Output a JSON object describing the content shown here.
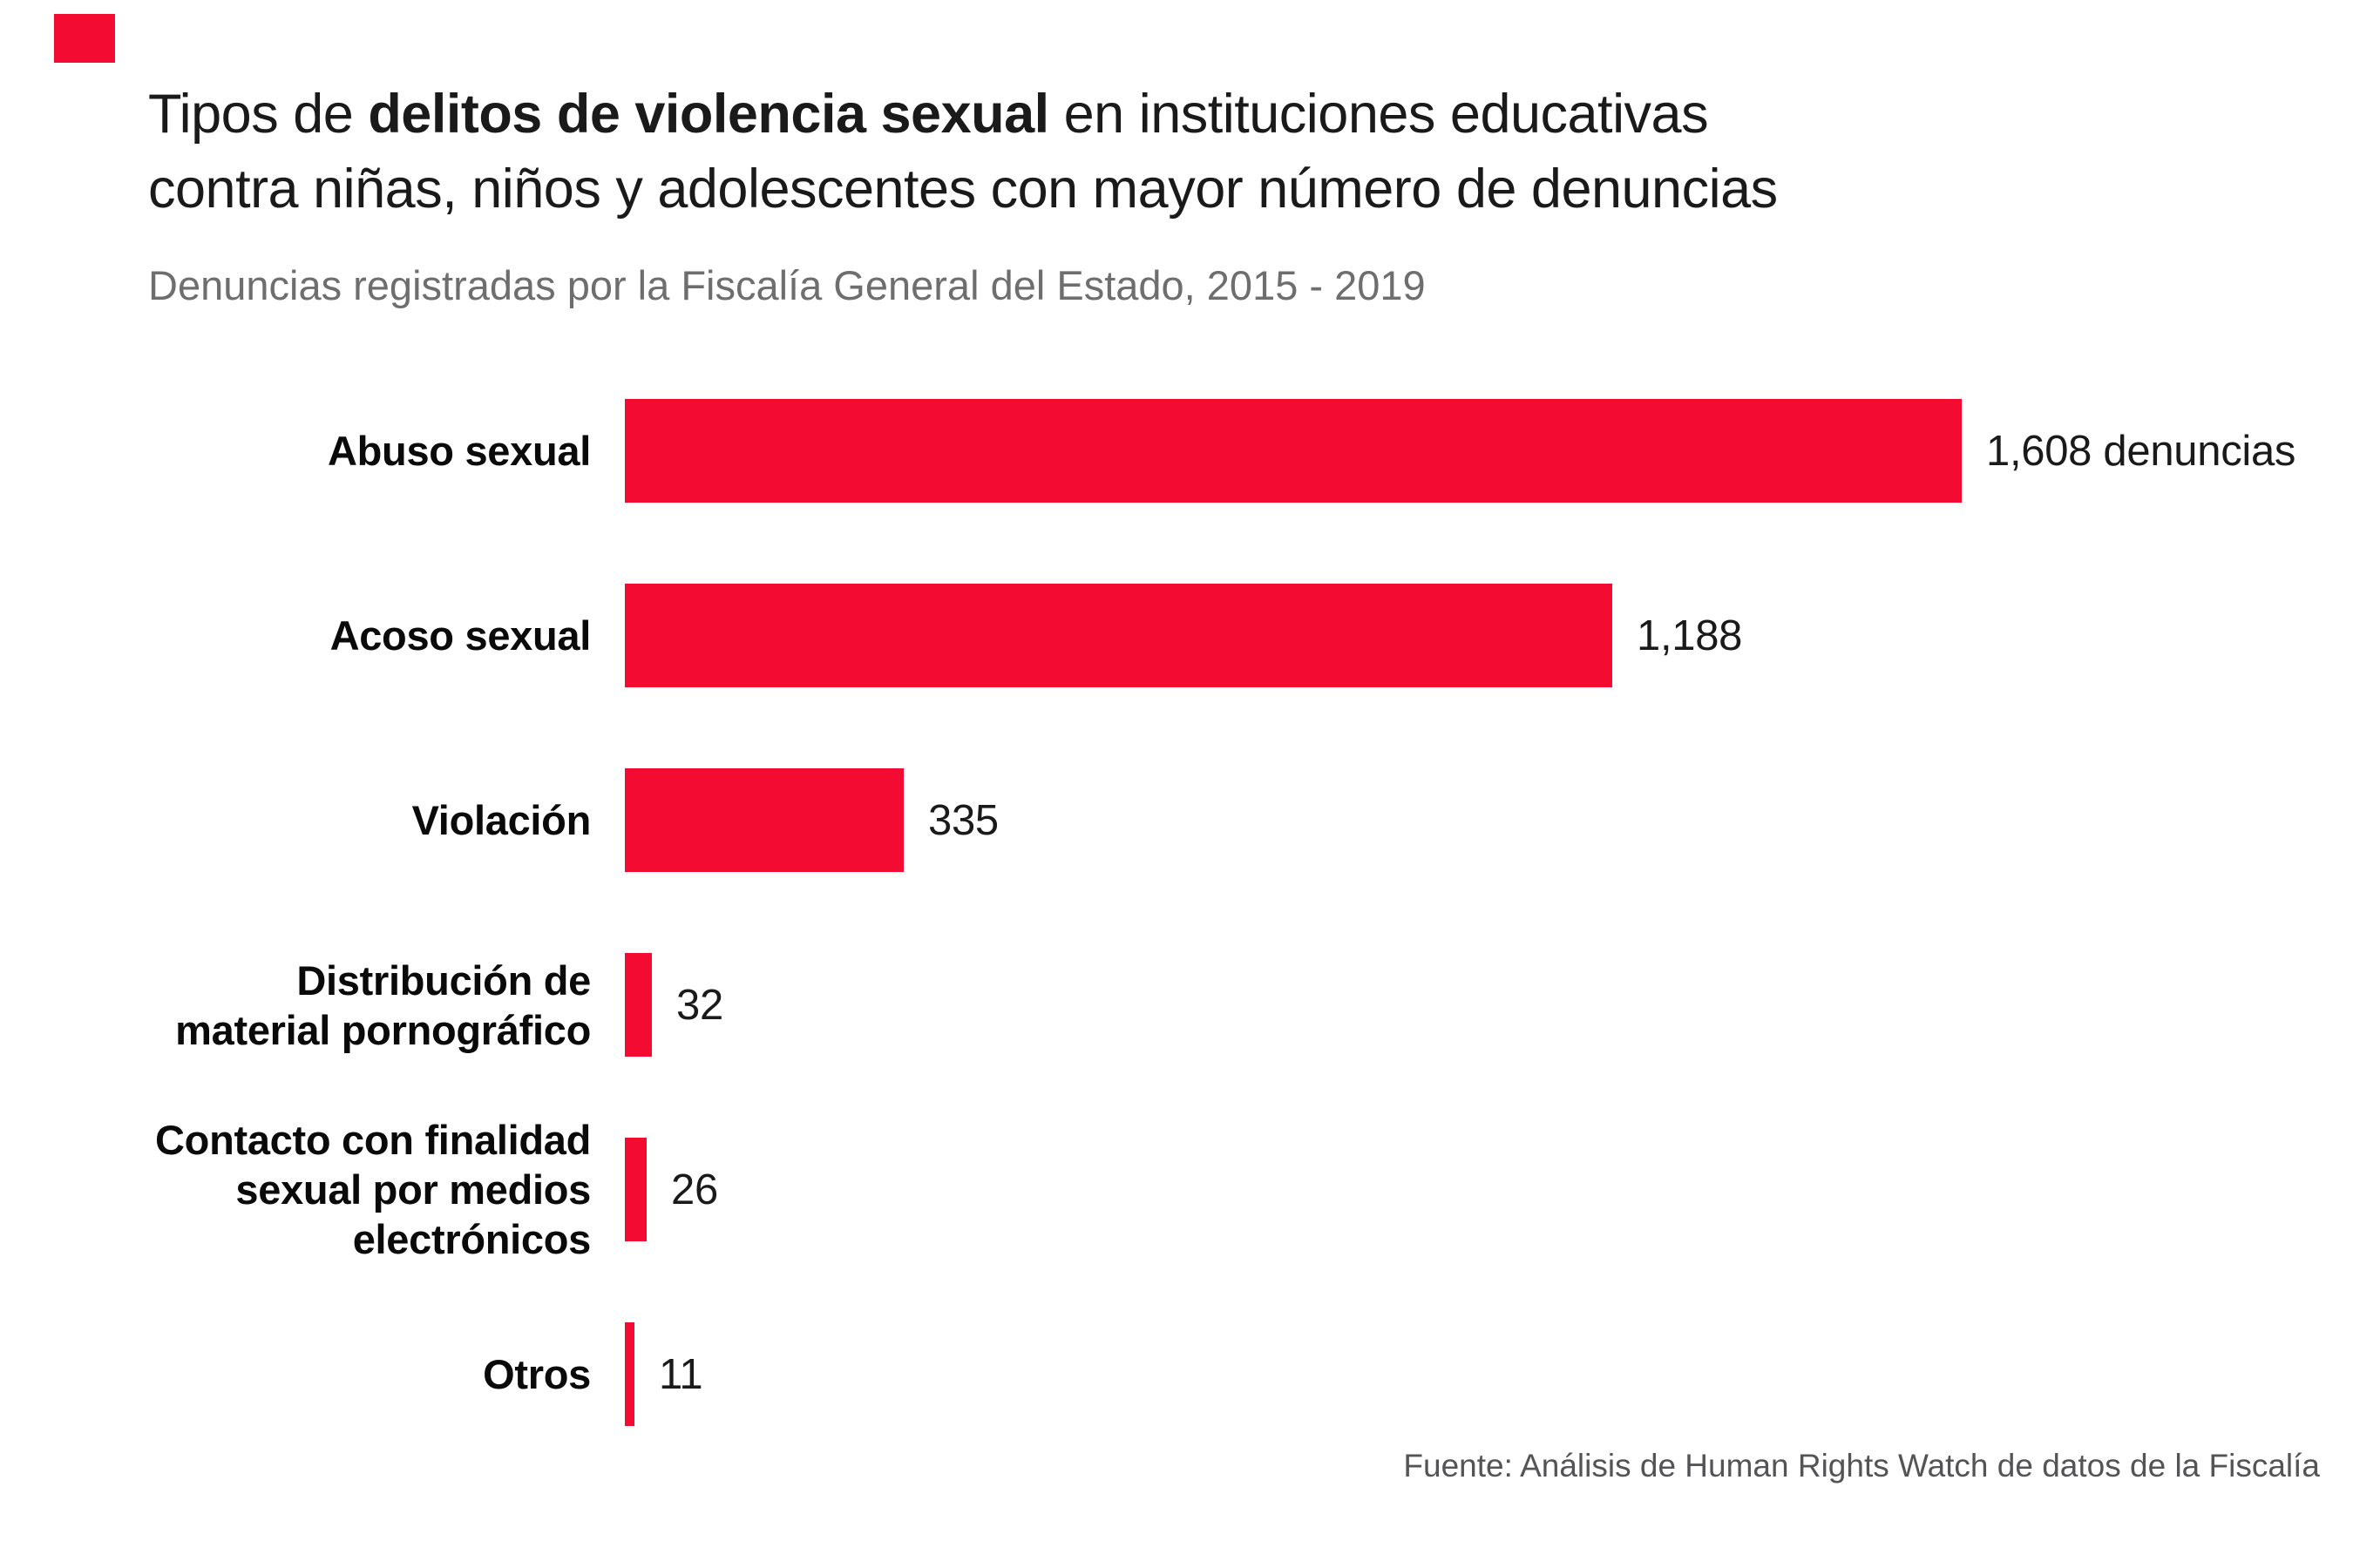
{
  "brand": {
    "mark_color": "#f40b32"
  },
  "header": {
    "title_line1_prefix": "Tipos de ",
    "title_line1_bold": "delitos de violencia sexual",
    "title_line1_suffix": " en instituciones educativas",
    "title_line2": "contra niñas, niños y adolescentes con mayor número de denuncias",
    "subtitle": "Denuncias registradas por la Fiscalía General del Estado, 2015 - 2019"
  },
  "chart_data": {
    "type": "bar",
    "orientation": "horizontal",
    "title": "Tipos de delitos de violencia sexual en instituciones educativas contra niñas, niños y adolescentes con mayor número de denuncias",
    "subtitle": "Denuncias registradas por la Fiscalía General del Estado, 2015 - 2019",
    "categories": [
      "Abuso sexual",
      "Acoso sexual",
      "Violación",
      "Distribución de material pornográfico",
      "Contacto con finalidad sexual por medios electrónicos",
      "Otros"
    ],
    "category_lines": [
      [
        "Abuso sexual"
      ],
      [
        "Acoso sexual"
      ],
      [
        "Violación"
      ],
      [
        "Distribución de",
        "material pornográfico"
      ],
      [
        "Contacto con finalidad",
        "sexual por medios",
        "electrónicos"
      ],
      [
        "Otros"
      ]
    ],
    "values": [
      1608,
      1188,
      335,
      32,
      26,
      11
    ],
    "value_labels": [
      "1,608 denuncias",
      "1,188",
      "335",
      "32",
      "26",
      "11"
    ],
    "xlim": [
      0,
      1608
    ],
    "bar_color": "#f40b32",
    "grid": false,
    "legend": false,
    "value_label_position": "right-of-bar",
    "category_label_position": "left-of-bar"
  },
  "footer": {
    "source": "Fuente: Análisis de Human Rights Watch de datos de la Fiscalía"
  }
}
